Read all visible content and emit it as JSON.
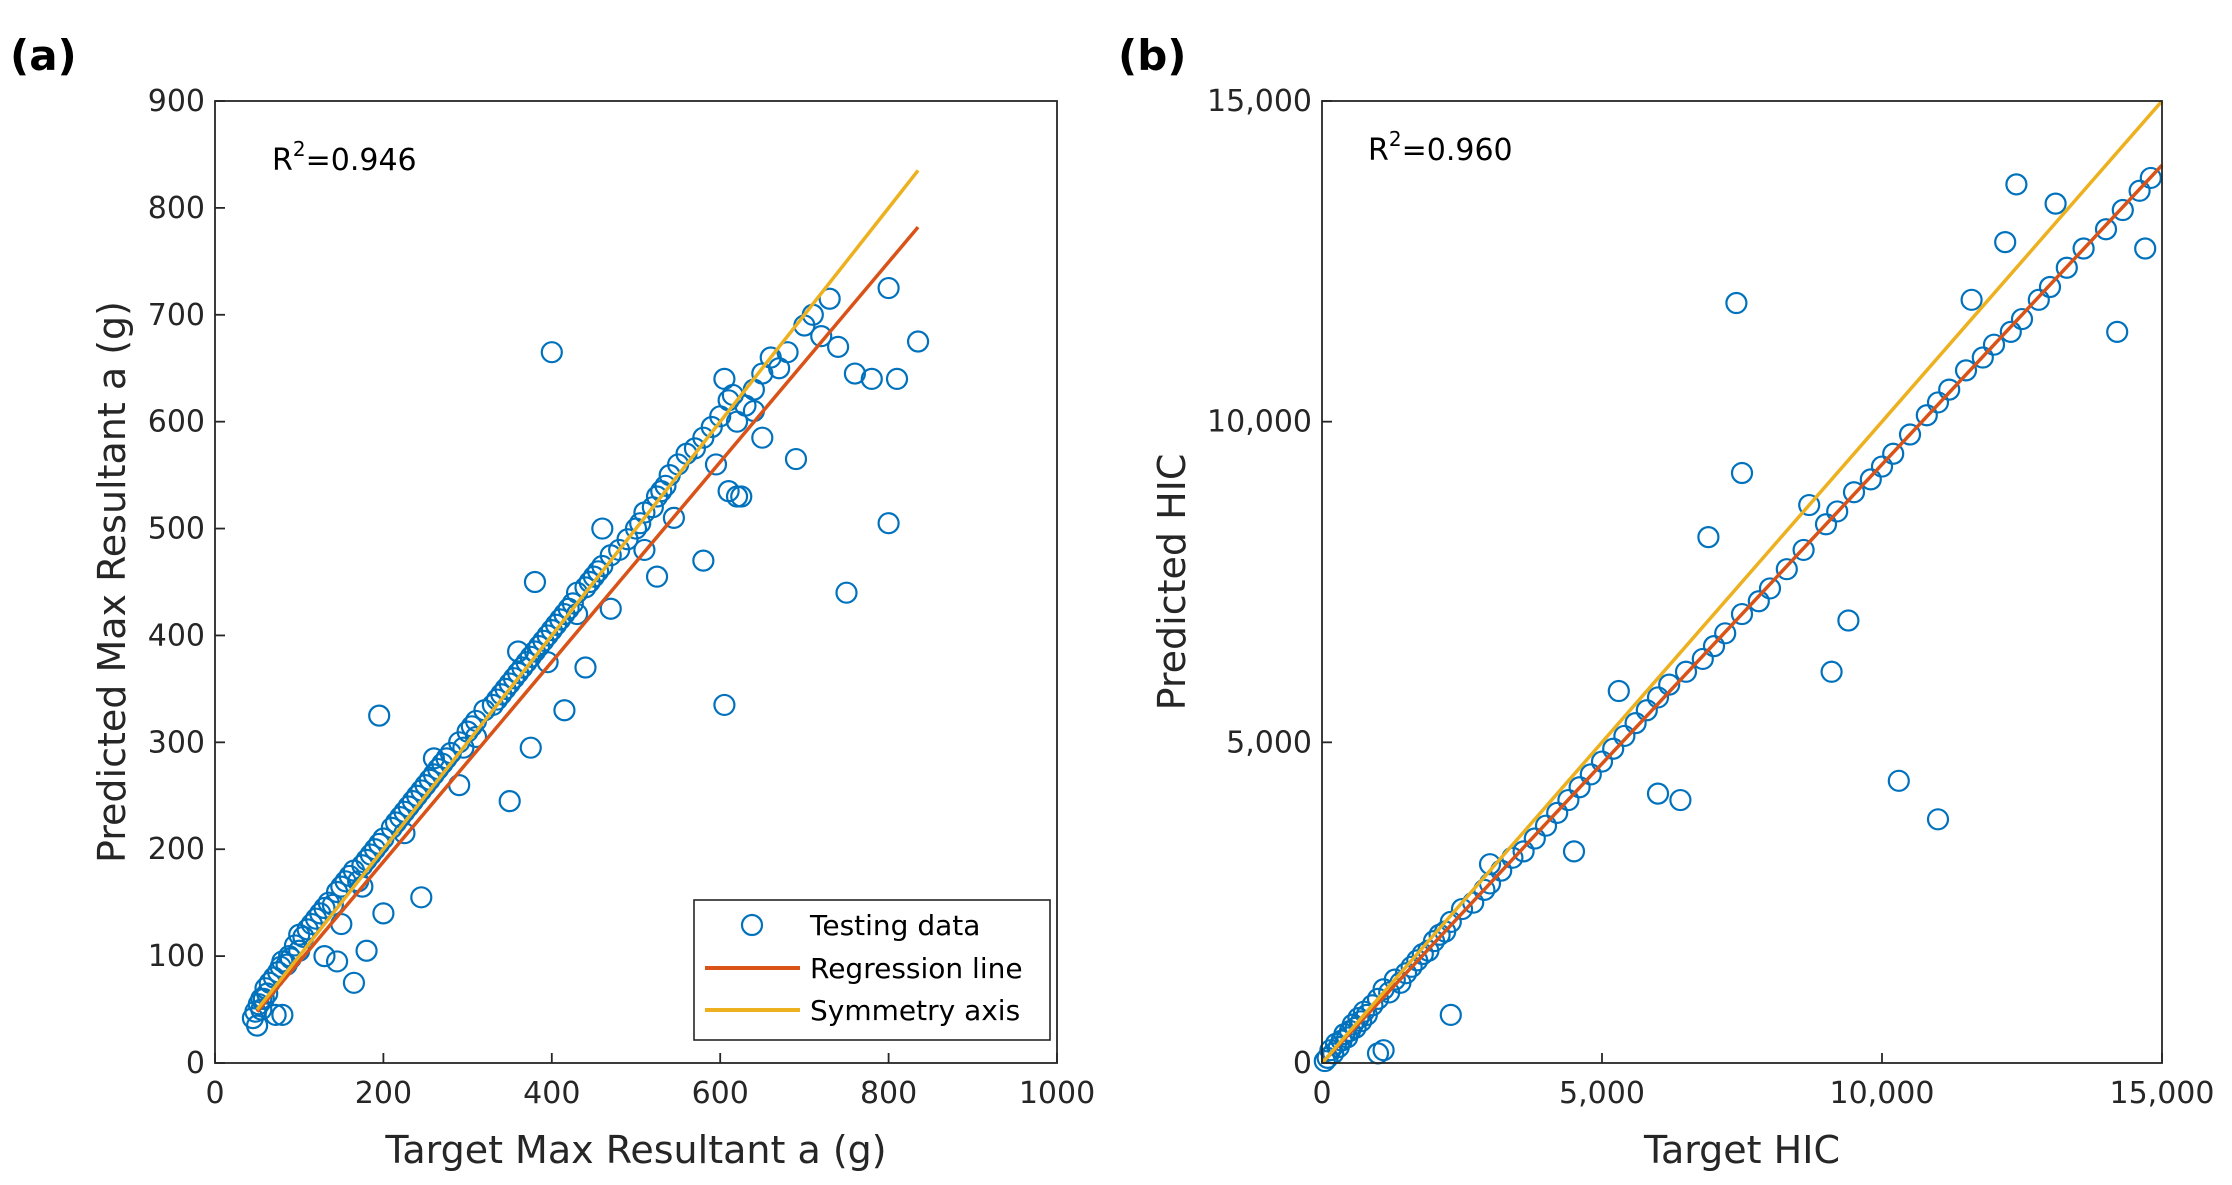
{
  "colors": {
    "points": "#0072BD",
    "regression": "#D95319",
    "symmetry": "#EDB120",
    "axes": "#262626"
  },
  "legend": {
    "testing": "Testing data",
    "regression": "Regression line",
    "symmetry": "Symmetry axis"
  },
  "chart_data": [
    {
      "panel": "(a)",
      "type": "scatter",
      "xlabel": "Target Max Resultant a (g)",
      "ylabel": "Predicted Max Resultant a (g)",
      "xlim": [
        0,
        1000
      ],
      "ylim": [
        0,
        900
      ],
      "xticks": [
        0,
        200,
        400,
        600,
        800,
        1000
      ],
      "xtick_labels": [
        "0",
        "200",
        "400",
        "600",
        "800",
        "1000"
      ],
      "yticks": [
        0,
        100,
        200,
        300,
        400,
        500,
        600,
        700,
        800,
        900
      ],
      "ytick_labels": [
        "0",
        "100",
        "200",
        "300",
        "400",
        "500",
        "600",
        "700",
        "800",
        "900"
      ],
      "annotation": {
        "label": "R",
        "sup": "2",
        "value": "=0.946"
      },
      "regression_line": {
        "x": [
          50,
          835
        ],
        "y": [
          48,
          782
        ]
      },
      "symmetry_axis": {
        "x": [
          50,
          835
        ],
        "y": [
          50,
          835
        ]
      },
      "points": {
        "x": [
          45,
          48,
          50,
          52,
          55,
          58,
          60,
          62,
          65,
          70,
          72,
          75,
          78,
          80,
          85,
          88,
          90,
          95,
          100,
          105,
          110,
          115,
          120,
          125,
          130,
          135,
          140,
          145,
          150,
          155,
          160,
          165,
          170,
          175,
          180,
          185,
          190,
          195,
          200,
          210,
          215,
          220,
          225,
          230,
          235,
          240,
          245,
          250,
          255,
          260,
          265,
          270,
          275,
          280,
          290,
          295,
          300,
          305,
          310,
          320,
          330,
          335,
          340,
          345,
          350,
          355,
          360,
          365,
          370,
          375,
          380,
          385,
          390,
          395,
          400,
          405,
          410,
          415,
          420,
          425,
          430,
          440,
          445,
          450,
          455,
          460,
          470,
          480,
          490,
          500,
          505,
          510,
          520,
          525,
          530,
          535,
          540,
          550,
          560,
          570,
          580,
          590,
          600,
          605,
          610,
          615,
          620,
          630,
          640,
          650,
          660,
          670,
          680,
          700,
          710,
          720,
          730,
          740,
          760,
          780,
          800,
          810,
          835,
          55,
          80,
          100,
          130,
          145,
          165,
          180,
          195,
          200,
          245,
          290,
          350,
          375,
          380,
          400,
          415,
          440,
          470,
          525,
          580,
          605,
          610,
          620,
          625,
          650,
          690,
          750,
          800,
          150,
          175,
          225,
          260,
          310,
          360,
          395,
          430,
          460,
          510,
          545,
          595,
          640
        ],
        "y": [
          42,
          48,
          35,
          55,
          50,
          60,
          70,
          65,
          75,
          80,
          45,
          85,
          90,
          95,
          92,
          100,
          98,
          110,
          105,
          118,
          125,
          130,
          135,
          140,
          145,
          150,
          148,
          160,
          165,
          170,
          175,
          180,
          170,
          185,
          190,
          195,
          200,
          205,
          210,
          220,
          225,
          230,
          235,
          240,
          245,
          250,
          255,
          260,
          265,
          270,
          275,
          280,
          285,
          290,
          300,
          295,
          310,
          315,
          320,
          330,
          335,
          340,
          345,
          350,
          355,
          360,
          365,
          370,
          375,
          380,
          385,
          390,
          395,
          400,
          405,
          410,
          415,
          420,
          425,
          430,
          440,
          445,
          450,
          455,
          460,
          465,
          475,
          480,
          490,
          500,
          505,
          515,
          520,
          530,
          535,
          540,
          550,
          560,
          570,
          575,
          585,
          595,
          605,
          640,
          620,
          625,
          600,
          615,
          630,
          645,
          660,
          650,
          665,
          690,
          700,
          680,
          715,
          670,
          645,
          640,
          725,
          640,
          675,
          60,
          45,
          120,
          100,
          95,
          75,
          105,
          325,
          140,
          155,
          260,
          245,
          295,
          450,
          665,
          330,
          370,
          425,
          455,
          470,
          335,
          535,
          530,
          530,
          585,
          565,
          440,
          505,
          130,
          165,
          215,
          285,
          305,
          385,
          375,
          420,
          500,
          480,
          510,
          560,
          610
        ]
      }
    },
    {
      "panel": "(b)",
      "type": "scatter",
      "xlabel": "Target HIC",
      "ylabel": "Predicted HIC",
      "xlim": [
        0,
        15000
      ],
      "ylim": [
        0,
        15000
      ],
      "xticks": [
        0,
        5000,
        10000,
        15000
      ],
      "xtick_labels": [
        "0",
        "5,000",
        "10,000",
        "15,000"
      ],
      "yticks": [
        0,
        5000,
        10000,
        15000
      ],
      "ytick_labels": [
        "0",
        "5,000",
        "10,000",
        "15,000"
      ],
      "annotation": {
        "label": "R",
        "sup": "2",
        "value": "=0.960"
      },
      "regression_line": {
        "x": [
          0,
          15000
        ],
        "y": [
          0,
          14000
        ]
      },
      "symmetry_axis": {
        "x": [
          0,
          15000
        ],
        "y": [
          0,
          15000
        ]
      },
      "points": {
        "x": [
          50,
          100,
          150,
          200,
          250,
          300,
          350,
          400,
          450,
          500,
          550,
          600,
          650,
          700,
          750,
          800,
          900,
          1000,
          1100,
          1200,
          1300,
          1400,
          1500,
          1600,
          1700,
          1800,
          1900,
          2000,
          2100,
          2200,
          2300,
          2500,
          2700,
          2900,
          3000,
          3200,
          3400,
          3600,
          3800,
          4000,
          4200,
          4400,
          4600,
          4800,
          5000,
          5200,
          5400,
          5600,
          5800,
          6000,
          6200,
          6500,
          6800,
          7000,
          7200,
          7500,
          7800,
          8000,
          8300,
          8600,
          9000,
          9200,
          9500,
          9800,
          10000,
          10200,
          10500,
          10800,
          11000,
          11200,
          11500,
          11800,
          12000,
          12300,
          12500,
          12800,
          13000,
          13300,
          13600,
          14000,
          14300,
          14600,
          14800,
          7400,
          7500,
          10300,
          11000,
          9100,
          9400,
          6000,
          6400,
          4500,
          2300,
          1000,
          1100,
          3000,
          5300,
          6900,
          8700,
          12200,
          12400,
          14200,
          14700,
          13100,
          11600
        ],
        "y": [
          30,
          80,
          200,
          150,
          300,
          250,
          350,
          450,
          400,
          500,
          600,
          550,
          700,
          650,
          800,
          750,
          900,
          1000,
          1150,
          1100,
          1300,
          1250,
          1400,
          1500,
          1600,
          1700,
          1750,
          1900,
          2000,
          2050,
          2200,
          2400,
          2500,
          2700,
          2800,
          3000,
          3200,
          3300,
          3500,
          3700,
          3900,
          4100,
          4300,
          4500,
          4700,
          4900,
          5100,
          5300,
          5500,
          5700,
          5900,
          6100,
          6300,
          6500,
          6700,
          7000,
          7200,
          7400,
          7700,
          8000,
          8400,
          8600,
          8900,
          9100,
          9300,
          9500,
          9800,
          10100,
          10300,
          10500,
          10800,
          11000,
          11200,
          11400,
          11600,
          11900,
          12100,
          12400,
          12700,
          13000,
          13300,
          13600,
          13800,
          11850,
          9200,
          4400,
          3800,
          6100,
          6900,
          4200,
          4100,
          3300,
          750,
          150,
          200,
          3100,
          5800,
          8200,
          8700,
          12800,
          13700,
          11400,
          12700,
          13400,
          11900
        ]
      }
    }
  ]
}
